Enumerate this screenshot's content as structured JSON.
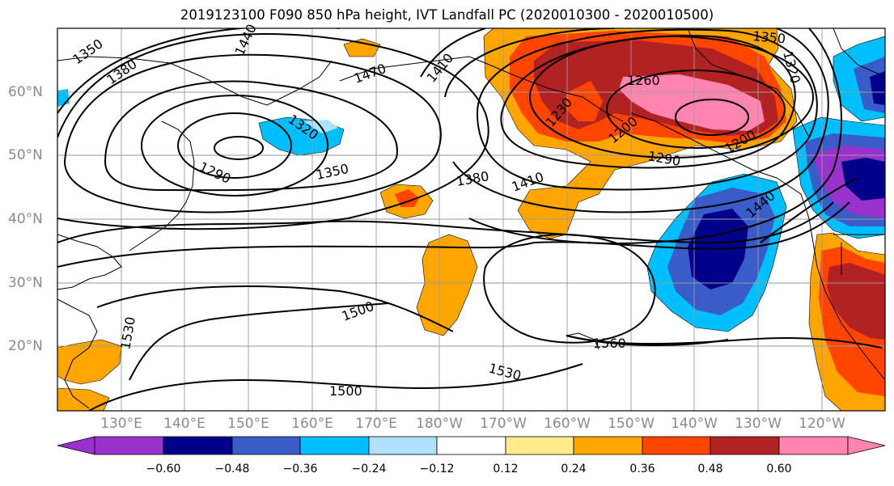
{
  "title": "2019123100 F090 850 hPa height, IVT Landfall PC (2020010300 - 2020010500)",
  "map": {
    "lat_labels": [
      "60°N",
      "50°N",
      "40°N",
      "30°N",
      "20°N"
    ],
    "lon_labels": [
      "130°E",
      "140°E",
      "150°E",
      "160°E",
      "170°E",
      "180°W",
      "170°W",
      "160°W",
      "150°W",
      "140°W",
      "130°W",
      "120°W"
    ],
    "contour_labels": [
      "1350",
      "1380",
      "1440",
      "1470",
      "1410",
      "1350",
      "1320",
      "1320",
      "1290",
      "1350",
      "1380",
      "1410",
      "1260",
      "1230",
      "1200",
      "1290",
      "1200",
      "1440",
      "1500",
      "1530",
      "1560",
      "1530",
      "1500"
    ]
  },
  "colorbar": {
    "colors": [
      "#9932CC",
      "#00008B",
      "#3A5CC9",
      "#00BFFF",
      "#B0E0FF",
      "#FFFFFF",
      "#FFEB8A",
      "#FFA500",
      "#FF4500",
      "#B22222",
      "#FF85B0"
    ],
    "tick_labels": [
      "−0.60",
      "−0.48",
      "−0.36",
      "−0.24",
      "−0.12",
      "0.12",
      "0.24",
      "0.36",
      "0.48",
      "0.60"
    ]
  }
}
